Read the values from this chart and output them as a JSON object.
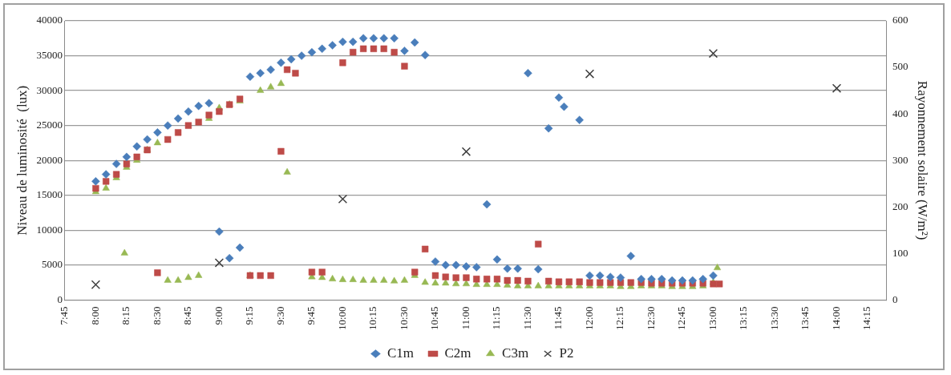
{
  "chart_data": {
    "type": "scatter",
    "xlabel": null,
    "ylabel": "Niveau de luminosité  (lux)",
    "y2label": "Rayonnement solaire (W/m²)",
    "xlim": [
      7.75,
      14.4
    ],
    "xticks": [
      {
        "value": 7.75,
        "label": "7:45"
      },
      {
        "value": 8,
        "label": "8:00"
      },
      {
        "value": 8.25,
        "label": "8:15"
      },
      {
        "value": 8.5,
        "label": "8:30"
      },
      {
        "value": 8.75,
        "label": "8:45"
      },
      {
        "value": 9,
        "label": "9:00"
      },
      {
        "value": 9.25,
        "label": "9:15"
      },
      {
        "value": 9.5,
        "label": "9:30"
      },
      {
        "value": 9.75,
        "label": "9:45"
      },
      {
        "value": 10,
        "label": "10:00"
      },
      {
        "value": 10.25,
        "label": "10:15"
      },
      {
        "value": 10.5,
        "label": "10:30"
      },
      {
        "value": 10.75,
        "label": "10:45"
      },
      {
        "value": 11,
        "label": "11:00"
      },
      {
        "value": 11.25,
        "label": "11:15"
      },
      {
        "value": 11.5,
        "label": "11:30"
      },
      {
        "value": 11.75,
        "label": "11:45"
      },
      {
        "value": 12,
        "label": "12:00"
      },
      {
        "value": 12.25,
        "label": "12:15"
      },
      {
        "value": 12.5,
        "label": "12:30"
      },
      {
        "value": 12.75,
        "label": "12:45"
      },
      {
        "value": 13,
        "label": "13:00"
      },
      {
        "value": 13.25,
        "label": "13:15"
      },
      {
        "value": 13.5,
        "label": "13:30"
      },
      {
        "value": 13.75,
        "label": "13:45"
      },
      {
        "value": 14,
        "label": "14:00"
      },
      {
        "value": 14.25,
        "label": "14:15"
      }
    ],
    "ylim": [
      0,
      40000
    ],
    "yticks": [
      0,
      5000,
      10000,
      15000,
      20000,
      25000,
      30000,
      35000,
      40000
    ],
    "y2lim": [
      0,
      600
    ],
    "y2ticks": [
      0,
      100,
      200,
      300,
      400,
      500,
      600
    ],
    "grid": "y",
    "legend": "bottom",
    "series": [
      {
        "name": "C1m",
        "color": "#4a7ebb",
        "marker": "diamond",
        "x": [
          8,
          8.083,
          8.167,
          8.25,
          8.333,
          8.417,
          8.5,
          8.583,
          8.667,
          8.75,
          8.833,
          8.917,
          9,
          9.083,
          9.167,
          9.25,
          9.333,
          9.417,
          9.5,
          9.583,
          9.667,
          9.75,
          9.833,
          9.917,
          10,
          10.083,
          10.167,
          10.25,
          10.333,
          10.417,
          10.5,
          10.583,
          10.667,
          10.75,
          10.833,
          10.917,
          11,
          11.083,
          11.167,
          11.25,
          11.333,
          11.417,
          11.5,
          11.583,
          11.667,
          11.75,
          11.792,
          11.917,
          12,
          12.083,
          12.167,
          12.25,
          12.333,
          12.417,
          12.5,
          12.583,
          12.667,
          12.75,
          12.833,
          12.917,
          13
        ],
        "values": [
          17000,
          18000,
          19500,
          20500,
          22000,
          23000,
          24000,
          25000,
          26000,
          27000,
          27800,
          28200,
          9800,
          6000,
          7500,
          32000,
          32500,
          33000,
          34000,
          34500,
          35000,
          35500,
          36000,
          36500,
          37000,
          37000,
          37500,
          37500,
          37500,
          37500,
          35700,
          36900,
          35100,
          5500,
          5000,
          5000,
          4800,
          4700,
          13700,
          5800,
          4500,
          4500,
          32500,
          4400,
          24600,
          29000,
          27700,
          25800,
          3500,
          3500,
          3300,
          3200,
          6300,
          3000,
          3000,
          3000,
          2800,
          2800,
          2800,
          3000,
          3500
        ]
      },
      {
        "name": "C2m",
        "color": "#be4b48",
        "marker": "square",
        "x": [
          8,
          8.083,
          8.167,
          8.25,
          8.333,
          8.417,
          8.5,
          8.583,
          8.667,
          8.75,
          8.833,
          8.917,
          9,
          9.083,
          9.167,
          9.25,
          9.333,
          9.417,
          9.5,
          9.55,
          9.617,
          9.75,
          9.833,
          10,
          10.083,
          10.167,
          10.25,
          10.333,
          10.417,
          10.5,
          10.583,
          10.667,
          10.75,
          10.833,
          10.917,
          11,
          11.083,
          11.167,
          11.25,
          11.333,
          11.417,
          11.5,
          11.583,
          11.667,
          11.75,
          11.833,
          11.917,
          12,
          12.083,
          12.167,
          12.25,
          12.333,
          12.417,
          12.5,
          12.583,
          12.667,
          12.75,
          12.833,
          12.917,
          13,
          13.05
        ],
        "values": [
          16000,
          17000,
          18000,
          19500,
          20500,
          21500,
          3900,
          23000,
          24000,
          25000,
          25500,
          26500,
          27000,
          28000,
          28800,
          3500,
          3500,
          3500,
          21300,
          33000,
          32500,
          4000,
          4000,
          34000,
          35500,
          36000,
          36000,
          36000,
          35500,
          33500,
          4000,
          7300,
          3500,
          3300,
          3200,
          3200,
          3000,
          3000,
          3000,
          2800,
          2800,
          2700,
          8000,
          2700,
          2600,
          2600,
          2600,
          2500,
          2500,
          2500,
          2500,
          2500,
          2500,
          2400,
          2400,
          2400,
          2400,
          2400,
          2400,
          2300,
          2300
        ]
      },
      {
        "name": "C3m",
        "color": "#98b954",
        "marker": "triangle",
        "x": [
          8,
          8.083,
          8.167,
          8.233,
          8.25,
          8.333,
          8.417,
          8.5,
          8.583,
          8.667,
          8.75,
          8.833,
          8.917,
          9,
          9.083,
          9.167,
          9.25,
          9.333,
          9.417,
          9.5,
          9.55,
          9.75,
          9.833,
          9.917,
          10,
          10.083,
          10.167,
          10.25,
          10.333,
          10.417,
          10.5,
          10.583,
          10.667,
          10.75,
          10.833,
          10.917,
          11,
          11.083,
          11.167,
          11.25,
          11.333,
          11.417,
          11.5,
          11.583,
          11.667,
          11.75,
          11.833,
          11.917,
          12,
          12.083,
          12.167,
          12.25,
          12.333,
          12.417,
          12.5,
          12.583,
          12.667,
          12.75,
          12.833,
          12.917,
          13,
          13.033
        ],
        "values": [
          15500,
          16000,
          17500,
          6700,
          19000,
          20000,
          21500,
          22500,
          2800,
          2800,
          3200,
          3500,
          26000,
          27500,
          28000,
          28500,
          3500,
          30000,
          30500,
          31000,
          18300,
          3300,
          3200,
          3000,
          2900,
          2900,
          2800,
          2800,
          2800,
          2700,
          2800,
          3500,
          2500,
          2400,
          2400,
          2300,
          2300,
          2200,
          2200,
          2200,
          2100,
          2000,
          2000,
          2000,
          2000,
          2000,
          2000,
          2000,
          2000,
          2000,
          2000,
          1900,
          1900,
          2000,
          2000,
          2000,
          1900,
          1900,
          1900,
          2000,
          2500,
          4600
        ]
      },
      {
        "name": "P2",
        "color": "#404040",
        "marker": "cross",
        "axis": "y2",
        "x": [
          8,
          9,
          10,
          11,
          12,
          13,
          14
        ],
        "values": [
          33,
          80,
          217,
          319,
          486,
          530,
          455
        ]
      }
    ]
  }
}
